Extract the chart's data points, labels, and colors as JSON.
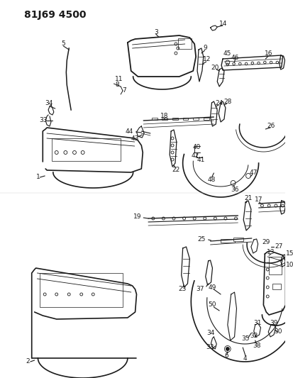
{
  "title": "81J69 4500",
  "bg": "#ffffff",
  "lc": "#1a1a1a",
  "fs": 6.5,
  "title_fs": 10,
  "fig_w": 4.14,
  "fig_h": 5.33,
  "dpi": 100
}
